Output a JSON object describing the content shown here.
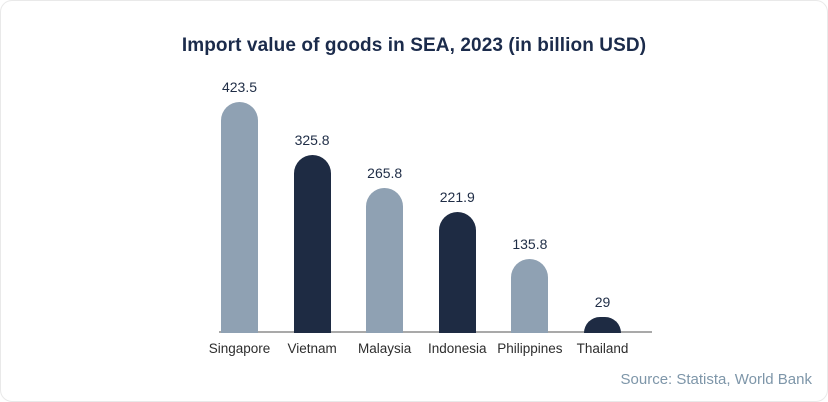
{
  "card": {
    "title": "Import value of goods in SEA, 2023 (in billion USD)",
    "source": "Source: Statista, World Bank"
  },
  "chart_data": {
    "type": "bar",
    "title": "Import value of goods in SEA, 2023 (in billion USD)",
    "categories": [
      "Singapore",
      "Vietnam",
      "Malaysia",
      "Indonesia",
      "Philippines",
      "Thailand"
    ],
    "values": [
      423.5,
      325.8,
      265.8,
      221.9,
      135.8,
      29
    ],
    "unit": "billion USD",
    "xlabel": "",
    "ylabel": "",
    "ylim": [
      0,
      460
    ],
    "grid": false,
    "legend": false,
    "value_labels_shown": true,
    "bar_color_pattern_alternating": [
      "#8fa1b3",
      "#1e2b43"
    ],
    "source": "Source: Statista, World Bank"
  },
  "colors": {
    "card_bg": "#ffffff",
    "card_border": "#e9e9e9",
    "title_text": "#1b2b4b",
    "value_label": "#1f2d46",
    "category_label": "#2d2d2d",
    "axis_line": "#a9a9a9",
    "source_text": "#7e96a9",
    "bar_light": "#8fa1b3",
    "bar_dark": "#1e2b43"
  }
}
